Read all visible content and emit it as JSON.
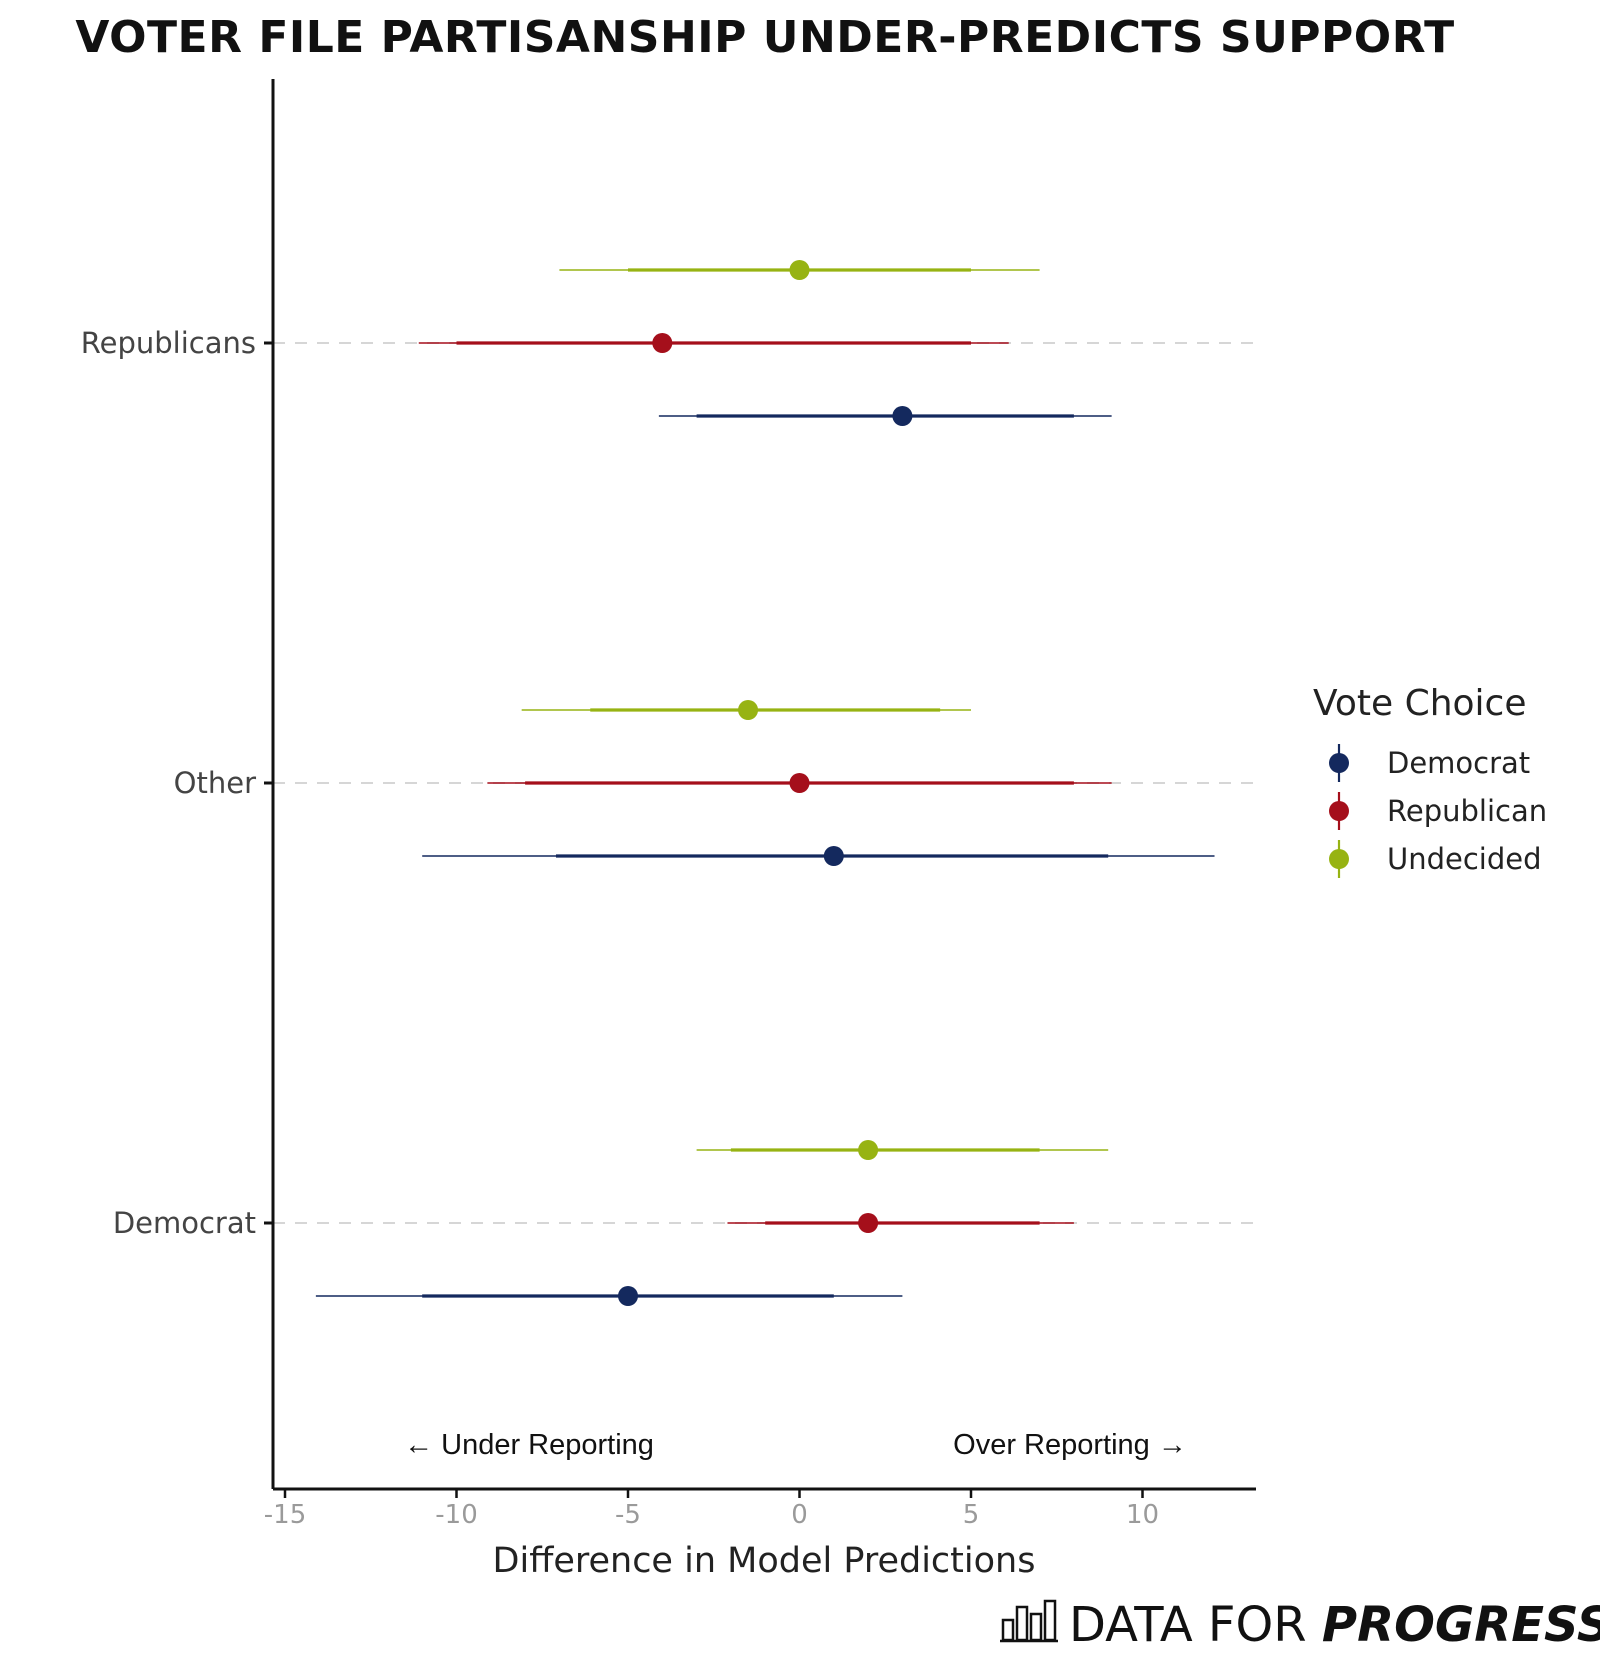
{
  "chart_data": {
    "type": "scatter",
    "title": "VOTER FILE PARTISANSHIP UNDER-PREDICTS SUPPORT",
    "xlabel": "Difference in Model Predictions",
    "ylabel": "",
    "xlim": [
      -15.3,
      13.3
    ],
    "xticks": [
      -15,
      -10,
      -5,
      0,
      5,
      10
    ],
    "xtick_labels": [
      "-15",
      "-10",
      "-5",
      "0",
      "5",
      "10"
    ],
    "categories": [
      "Republicans",
      "Other",
      "Democrat"
    ],
    "grid": "dashed horizontal lines at categories",
    "legend": {
      "title": "Vote Choice",
      "position": "right",
      "entries": [
        "Democrat",
        "Republican",
        "Undecided"
      ]
    },
    "annotations": {
      "left": "← Under Reporting",
      "right": "Over Reporting →"
    },
    "series": [
      {
        "name": "Democrat",
        "color": "#14295e",
        "points": [
          {
            "category": "Republicans",
            "estimate": 3,
            "inner": [
              -3,
              8
            ],
            "outer": [
              -4.1,
              9.1
            ]
          },
          {
            "category": "Other",
            "estimate": 1,
            "inner": [
              -7.1,
              9
            ],
            "outer": [
              -11,
              12.1
            ]
          },
          {
            "category": "Democrat",
            "estimate": -5,
            "inner": [
              -11,
              1
            ],
            "outer": [
              -14.1,
              3
            ]
          }
        ]
      },
      {
        "name": "Republican",
        "color": "#a50f1b",
        "points": [
          {
            "category": "Republicans",
            "estimate": -4,
            "inner": [
              -10,
              5
            ],
            "outer": [
              -11.1,
              6.1
            ]
          },
          {
            "category": "Other",
            "estimate": 0,
            "inner": [
              -8,
              8
            ],
            "outer": [
              -9.1,
              9.1
            ]
          },
          {
            "category": "Democrat",
            "estimate": 2,
            "inner": [
              -1,
              7
            ],
            "outer": [
              -2.1,
              8
            ]
          }
        ]
      },
      {
        "name": "Undecided",
        "color": "#97b313",
        "points": [
          {
            "category": "Republicans",
            "estimate": 0,
            "inner": [
              -5,
              5
            ],
            "outer": [
              -7,
              7
            ]
          },
          {
            "category": "Other",
            "estimate": -1.5,
            "inner": [
              -6.1,
              4.1
            ],
            "outer": [
              -8.1,
              5
            ]
          },
          {
            "category": "Democrat",
            "estimate": 2,
            "inner": [
              -2,
              7
            ],
            "outer": [
              -3,
              9
            ]
          }
        ]
      }
    ]
  },
  "logo": {
    "text_regular": "DATA FOR ",
    "text_bold": "PROGRESS",
    "icon": "bar-chart-icon"
  }
}
